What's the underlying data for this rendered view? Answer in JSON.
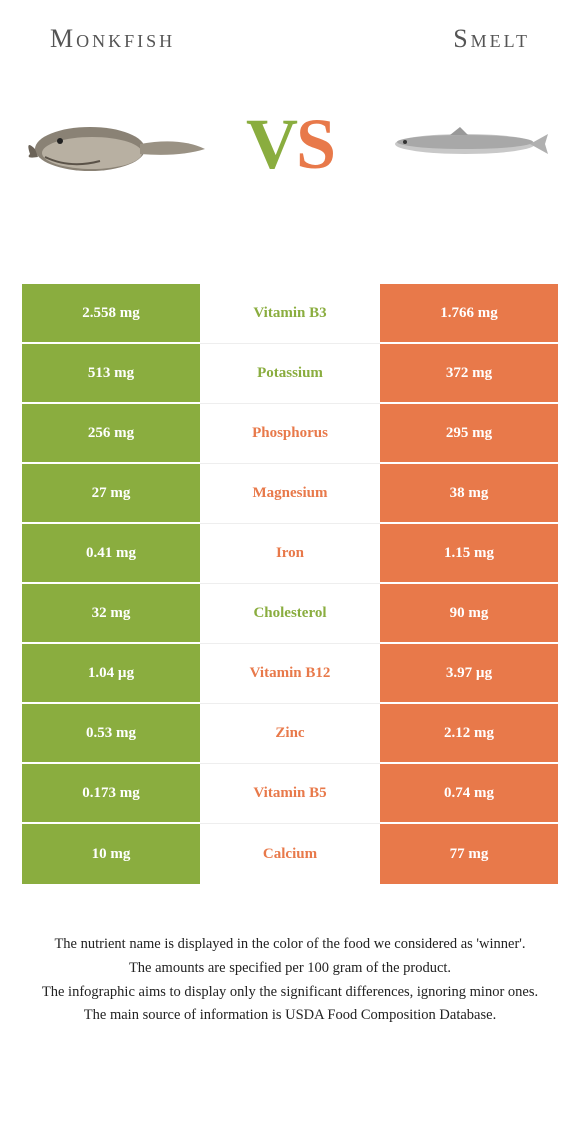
{
  "colors": {
    "left": "#8aad3f",
    "right": "#e8794a",
    "background": "#ffffff"
  },
  "header": {
    "left_title": "Monkfish",
    "right_title": "Smelt"
  },
  "vs": {
    "v": "V",
    "s": "S"
  },
  "rows": [
    {
      "left": "2.558 mg",
      "name": "Vitamin B3",
      "right": "1.766 mg",
      "winner": "left"
    },
    {
      "left": "513 mg",
      "name": "Potassium",
      "right": "372 mg",
      "winner": "left"
    },
    {
      "left": "256 mg",
      "name": "Phosphorus",
      "right": "295 mg",
      "winner": "right"
    },
    {
      "left": "27 mg",
      "name": "Magnesium",
      "right": "38 mg",
      "winner": "right"
    },
    {
      "left": "0.41 mg",
      "name": "Iron",
      "right": "1.15 mg",
      "winner": "right"
    },
    {
      "left": "32 mg",
      "name": "Cholesterol",
      "right": "90 mg",
      "winner": "left"
    },
    {
      "left": "1.04 µg",
      "name": "Vitamin B12",
      "right": "3.97 µg",
      "winner": "right"
    },
    {
      "left": "0.53 mg",
      "name": "Zinc",
      "right": "2.12 mg",
      "winner": "right"
    },
    {
      "left": "0.173 mg",
      "name": "Vitamin B5",
      "right": "0.74 mg",
      "winner": "right"
    },
    {
      "left": "10 mg",
      "name": "Calcium",
      "right": "77 mg",
      "winner": "right"
    }
  ],
  "footer": {
    "l1": "The nutrient name is displayed in the color of the food we considered as 'winner'.",
    "l2": "The amounts are specified per 100 gram of the product.",
    "l3": "The infographic aims to display only the significant differences, ignoring minor ones.",
    "l4": "The main source of information is USDA Food Composition Database."
  }
}
